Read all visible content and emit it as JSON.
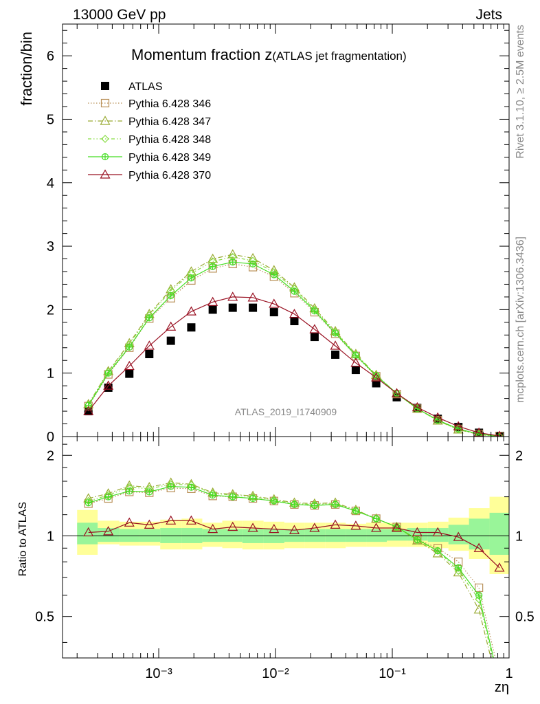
{
  "header": {
    "left_label": "13000 GeV pp",
    "right_label": "Jets"
  },
  "side_labels": {
    "rivet": "Rivet 3.1.10, ≥ 2.5M events",
    "mcplots": "mcplots.cern.ch [arXiv:1306.3436]"
  },
  "watermark": "ATLAS_2019_I1740909",
  "chart_data": [
    {
      "type": "line",
      "panel": "main",
      "title_main": "Momentum fraction z",
      "title_sub": "(ATLAS jet fragmentation)",
      "ylabel": "fraction/bin",
      "xlabel": "zη",
      "xscale": "log",
      "xlim": [
        0.00015,
        1.0
      ],
      "ylim": [
        0,
        6.5
      ],
      "yticks": [
        0,
        1,
        2,
        3,
        4,
        5,
        6
      ],
      "ytick_labels": [
        "0",
        "1",
        "2",
        "3",
        "4",
        "5",
        "6"
      ],
      "legend_position": "top-left",
      "x": [
        0.00025,
        0.00037,
        0.00056,
        0.00083,
        0.00127,
        0.0019,
        0.0029,
        0.0043,
        0.0064,
        0.0097,
        0.0145,
        0.0216,
        0.0325,
        0.0487,
        0.0728,
        0.1092,
        0.1636,
        0.245,
        0.368,
        0.552,
        0.827
      ],
      "series": [
        {
          "name": "ATLAS",
          "style": "data",
          "color": "#000000",
          "values": [
            0.4,
            0.77,
            0.99,
            1.3,
            1.51,
            1.72,
            2.0,
            2.03,
            2.03,
            1.96,
            1.82,
            1.57,
            1.29,
            1.05,
            0.84,
            0.62,
            0.45,
            0.28,
            0.15,
            0.06,
            0.01
          ]
        },
        {
          "name": "Pythia 6.428 346",
          "style": "dotted",
          "marker": "square",
          "color": "#b88f56",
          "values": [
            0.48,
            0.98,
            1.4,
            1.86,
            2.18,
            2.46,
            2.65,
            2.72,
            2.67,
            2.52,
            2.26,
            1.96,
            1.62,
            1.27,
            0.95,
            0.67,
            0.44,
            0.26,
            0.12,
            0.04,
            0.01
          ]
        },
        {
          "name": "Pythia 6.428 347",
          "style": "dashdot",
          "marker": "triangle",
          "color": "#99aa33",
          "values": [
            0.51,
            1.03,
            1.47,
            1.93,
            2.32,
            2.6,
            2.8,
            2.87,
            2.81,
            2.62,
            2.35,
            2.02,
            1.66,
            1.3,
            0.97,
            0.68,
            0.44,
            0.25,
            0.11,
            0.03,
            0.0
          ]
        },
        {
          "name": "Pythia 6.428 348",
          "style": "dashdot2",
          "marker": "diamond",
          "color": "#88dd44",
          "values": [
            0.5,
            1.02,
            1.45,
            1.91,
            2.3,
            2.57,
            2.76,
            2.83,
            2.77,
            2.59,
            2.33,
            2.0,
            1.65,
            1.29,
            0.96,
            0.68,
            0.44,
            0.25,
            0.11,
            0.04,
            0.0
          ]
        },
        {
          "name": "Pythia 6.428 349",
          "style": "solid",
          "marker": "circle-plus",
          "color": "#44dd22",
          "values": [
            0.49,
            1.0,
            1.41,
            1.87,
            2.22,
            2.5,
            2.68,
            2.75,
            2.72,
            2.55,
            2.29,
            1.98,
            1.63,
            1.28,
            0.96,
            0.68,
            0.44,
            0.26,
            0.12,
            0.04,
            0.0
          ]
        },
        {
          "name": "Pythia 6.428 370",
          "style": "solid",
          "marker": "triangle",
          "color": "#991122",
          "values": [
            0.4,
            0.8,
            1.11,
            1.43,
            1.73,
            1.97,
            2.12,
            2.2,
            2.19,
            2.09,
            1.93,
            1.69,
            1.43,
            1.16,
            0.93,
            0.68,
            0.46,
            0.3,
            0.16,
            0.06,
            0.01
          ]
        }
      ]
    },
    {
      "type": "line",
      "panel": "ratio",
      "ylabel": "Ratio to ATLAS",
      "xscale": "log",
      "xlim": [
        0.00015,
        1.0
      ],
      "ylim": [
        0.35,
        2.35
      ],
      "yscale": "log",
      "yticks": [
        0.5,
        1,
        2
      ],
      "ytick_labels": [
        "0.5",
        "1",
        "2"
      ],
      "xtick_labels": [
        "10⁻³",
        "10⁻²",
        "10⁻¹",
        "1"
      ],
      "x": [
        0.00025,
        0.00037,
        0.00056,
        0.00083,
        0.00127,
        0.0019,
        0.0029,
        0.0043,
        0.0064,
        0.0097,
        0.0145,
        0.0216,
        0.0325,
        0.0487,
        0.0728,
        0.1092,
        0.1636,
        0.245,
        0.368,
        0.552,
        0.827
      ],
      "bin_edges": [
        0.0002,
        0.0003,
        0.00046,
        0.00068,
        0.00103,
        0.00157,
        0.00236,
        0.0035,
        0.0052,
        0.0079,
        0.0119,
        0.0178,
        0.0266,
        0.0399,
        0.0598,
        0.0897,
        0.1345,
        0.2016,
        0.3024,
        0.4536,
        0.6804,
        1.0
      ],
      "band_yellow": {
        "low": [
          0.85,
          0.93,
          0.92,
          0.92,
          0.89,
          0.89,
          0.91,
          0.9,
          0.89,
          0.89,
          0.9,
          0.9,
          0.9,
          0.91,
          0.91,
          0.91,
          0.91,
          0.9,
          0.88,
          0.82,
          0.72
        ],
        "high": [
          1.25,
          1.14,
          1.13,
          1.13,
          1.15,
          1.16,
          1.12,
          1.14,
          1.14,
          1.13,
          1.12,
          1.12,
          1.12,
          1.11,
          1.12,
          1.12,
          1.12,
          1.13,
          1.17,
          1.27,
          1.4
        ]
      },
      "band_green": {
        "low": [
          0.93,
          0.95,
          0.95,
          0.95,
          0.94,
          0.94,
          0.95,
          0.95,
          0.94,
          0.94,
          0.95,
          0.95,
          0.95,
          0.95,
          0.95,
          0.96,
          0.96,
          0.95,
          0.93,
          0.89,
          0.85
        ],
        "high": [
          1.12,
          1.07,
          1.06,
          1.06,
          1.07,
          1.07,
          1.06,
          1.06,
          1.06,
          1.06,
          1.06,
          1.06,
          1.06,
          1.06,
          1.06,
          1.06,
          1.07,
          1.07,
          1.1,
          1.16,
          1.22
        ]
      },
      "series": [
        {
          "name": "Pythia 6.428 346",
          "style": "dotted",
          "marker": "square",
          "color": "#b88f56",
          "values": [
            1.32,
            1.38,
            1.46,
            1.45,
            1.51,
            1.5,
            1.41,
            1.4,
            1.38,
            1.35,
            1.31,
            1.3,
            1.31,
            1.24,
            1.16,
            1.08,
            0.97,
            0.9,
            0.8,
            0.64,
            0.3
          ]
        },
        {
          "name": "Pythia 6.428 347",
          "style": "dashdot",
          "marker": "triangle",
          "color": "#99aa33",
          "values": [
            1.38,
            1.44,
            1.54,
            1.52,
            1.58,
            1.56,
            1.45,
            1.43,
            1.41,
            1.37,
            1.33,
            1.32,
            1.33,
            1.25,
            1.16,
            1.08,
            0.96,
            0.86,
            0.73,
            0.53,
            0.26
          ]
        },
        {
          "name": "Pythia 6.428 348",
          "style": "dashdot2",
          "marker": "diamond",
          "color": "#88dd44",
          "values": [
            1.35,
            1.42,
            1.52,
            1.5,
            1.56,
            1.55,
            1.44,
            1.42,
            1.4,
            1.36,
            1.32,
            1.31,
            1.32,
            1.24,
            1.16,
            1.08,
            0.96,
            0.88,
            0.74,
            0.58,
            0.27
          ]
        },
        {
          "name": "Pythia 6.428 349",
          "style": "solid",
          "marker": "circle-plus",
          "color": "#44dd22",
          "values": [
            1.33,
            1.4,
            1.47,
            1.46,
            1.53,
            1.52,
            1.42,
            1.4,
            1.38,
            1.35,
            1.31,
            1.3,
            1.31,
            1.24,
            1.16,
            1.08,
            0.97,
            0.88,
            0.76,
            0.6,
            0.28
          ]
        },
        {
          "name": "Pythia 6.428 370",
          "style": "solid",
          "marker": "triangle",
          "color": "#991122",
          "values": [
            1.03,
            1.04,
            1.12,
            1.1,
            1.14,
            1.14,
            1.06,
            1.08,
            1.07,
            1.06,
            1.05,
            1.07,
            1.1,
            1.09,
            1.07,
            1.07,
            1.03,
            1.03,
            0.99,
            0.9,
            0.76
          ]
        }
      ]
    }
  ]
}
